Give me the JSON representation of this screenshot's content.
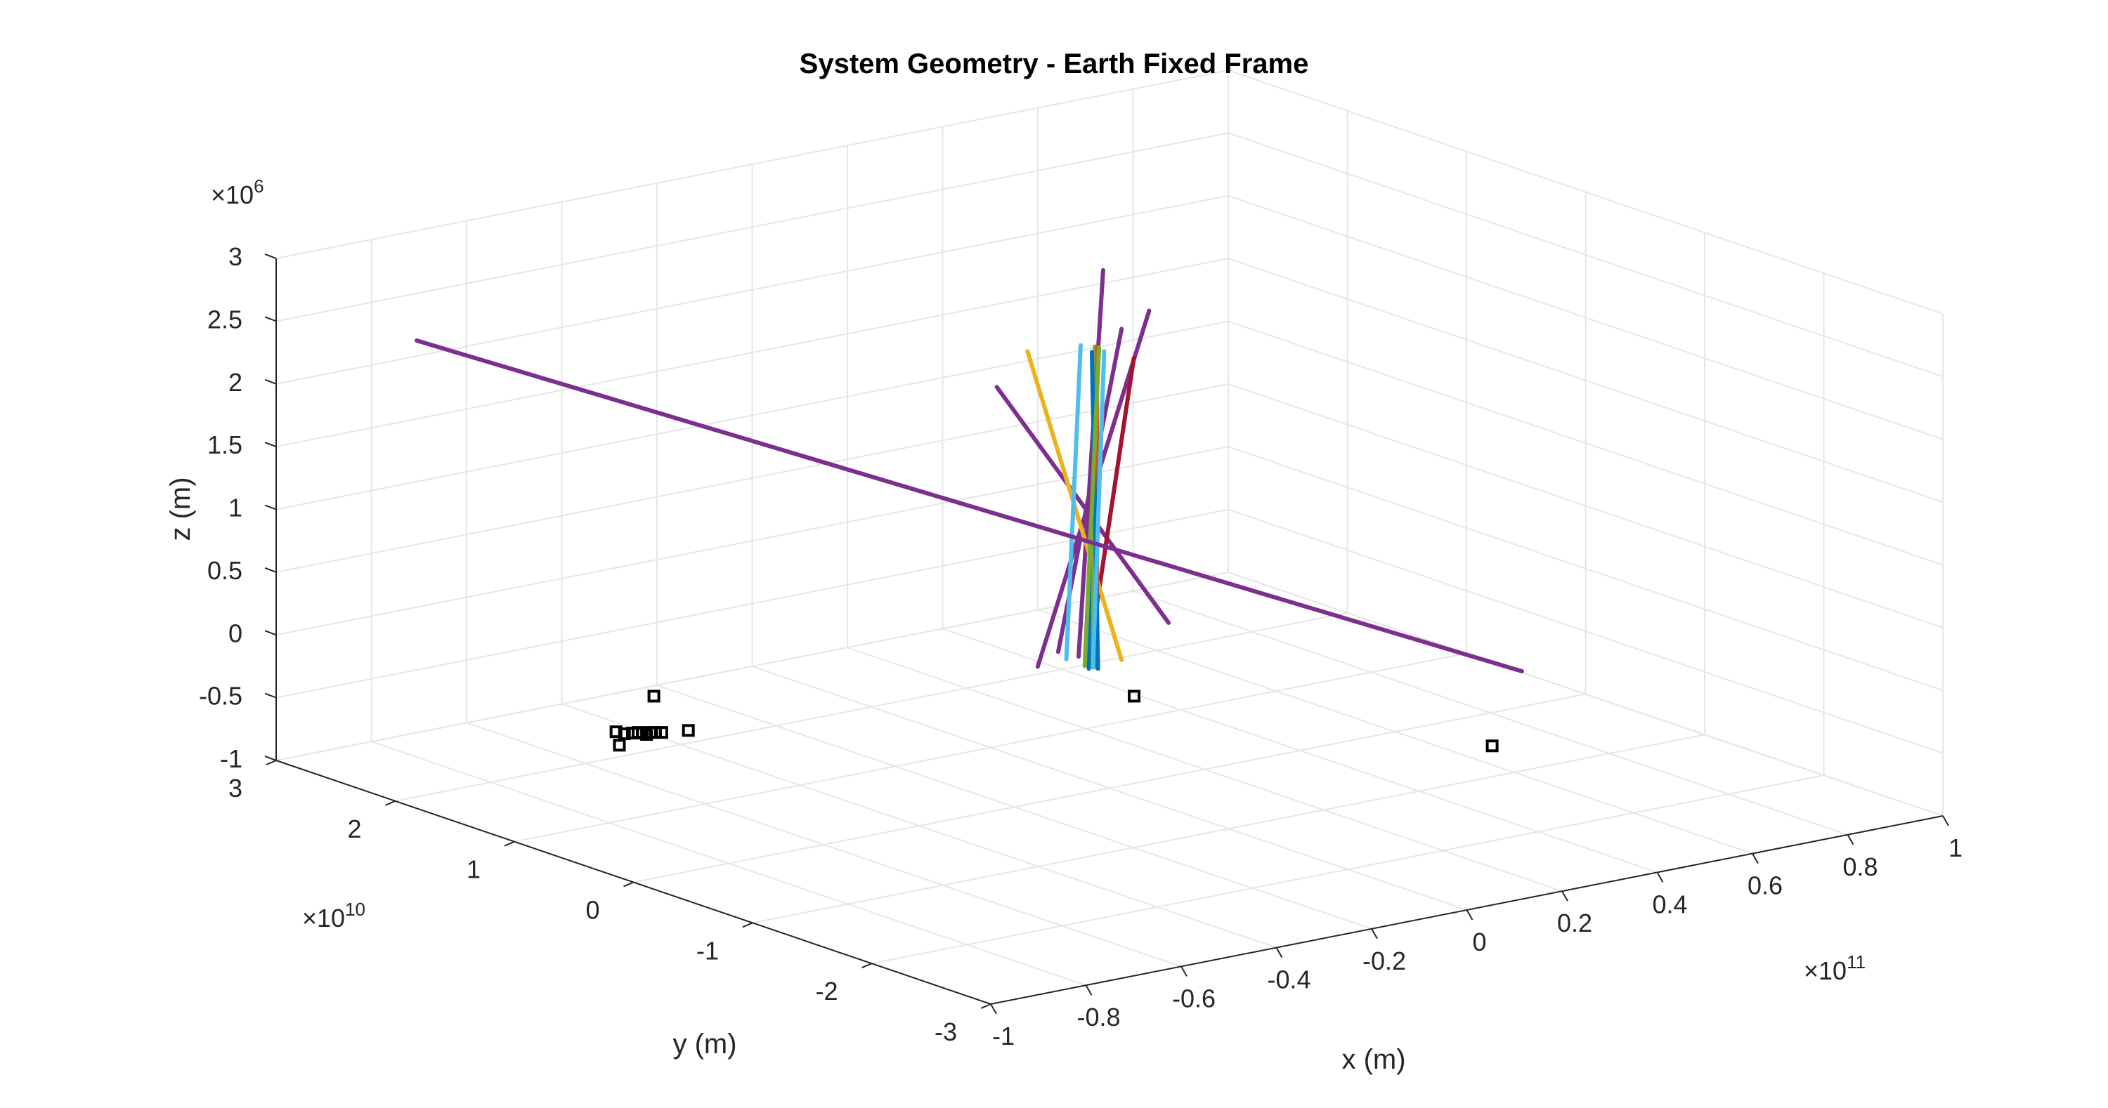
{
  "chart_data": {
    "type": "3d-line",
    "title": "System Geometry - Earth Fixed Frame",
    "xlabel": "x (m)",
    "ylabel": "y (m)",
    "zlabel": "z (m)",
    "x_exponent": "10",
    "x_exponent_power": "11",
    "y_exponent": "10",
    "y_exponent_power": "10",
    "z_exponent": "10",
    "z_exponent_power": "6",
    "exp_prefix": "×",
    "xlim": [
      -1,
      1
    ],
    "ylim": [
      -3,
      3
    ],
    "zlim": [
      -1,
      3
    ],
    "x_ticks": [
      "-1",
      "-0.8",
      "-0.6",
      "-0.4",
      "-0.2",
      "0",
      "0.2",
      "0.4",
      "0.6",
      "0.8",
      "1"
    ],
    "y_ticks": [
      "-3",
      "-2",
      "-1",
      "0",
      "1",
      "2",
      "3"
    ],
    "z_ticks": [
      "-1",
      "-0.5",
      "0",
      "0.5",
      "1",
      "1.5",
      "2",
      "2.5",
      "3"
    ],
    "grid": true,
    "series": [
      {
        "color": "#7e2f8e",
        "start": [
          1035,
          965
        ],
        "end": [
          1097,
          487
        ]
      },
      {
        "color": "#7e2f8e",
        "start": [
          1055,
          972
        ],
        "end": [
          1079,
          400
        ]
      },
      {
        "color": "#7e2f8e",
        "start": [
          1143,
          922
        ],
        "end": [
          975,
          573
        ]
      },
      {
        "color": "#7e2f8e",
        "start": [
          1015,
          987
        ],
        "end": [
          1124,
          460
        ]
      },
      {
        "color": "#a2142f",
        "start": [
          1064,
          985
        ],
        "end": [
          1109,
          530
        ]
      },
      {
        "color": "#edb120",
        "start": [
          1097,
          977
        ],
        "end": [
          1005,
          520
        ]
      },
      {
        "color": "#4dbeee",
        "start": [
          1043,
          976
        ],
        "end": [
          1057,
          511
        ]
      },
      {
        "color": "#0072bd",
        "start": [
          1065,
          990
        ],
        "end": [
          1072,
          518
        ]
      },
      {
        "color": "#77ac30",
        "start": [
          1069,
          988
        ],
        "end": [
          1071,
          513
        ]
      },
      {
        "color": "#d95319",
        "start": [
          1073,
          989
        ],
        "end": [
          1073,
          514
        ]
      },
      {
        "color": "#0072bd",
        "start": [
          1074,
          990
        ],
        "end": [
          1068,
          521
        ]
      },
      {
        "color": "#4dbeee",
        "start": [
          1069,
          988
        ],
        "end": [
          1080,
          520
        ]
      },
      {
        "color": "#77ac30",
        "start": [
          1061,
          986
        ],
        "end": [
          1075,
          515
        ]
      }
    ],
    "markers": {
      "style": "square",
      "color": "#000000",
      "points": [
        [
          1156,
          1036
        ],
        [
          1089,
          1089
        ],
        [
          1104,
          1092
        ],
        [
          1118,
          1091
        ],
        [
          1128,
          1090
        ],
        [
          1136,
          1091
        ],
        [
          1143,
          1093
        ],
        [
          1150,
          1090
        ],
        [
          1159,
          1090
        ],
        [
          1170,
          1090
        ],
        [
          1095,
          1109
        ],
        [
          1217,
          1087
        ],
        [
          2005,
          1036
        ],
        [
          2638,
          1110
        ]
      ]
    },
    "long_line": {
      "color": "#7e2f8e",
      "start": [
        -0.4,
        2.15
      ],
      "end": [
        0.5,
        -0.05
      ]
    }
  }
}
